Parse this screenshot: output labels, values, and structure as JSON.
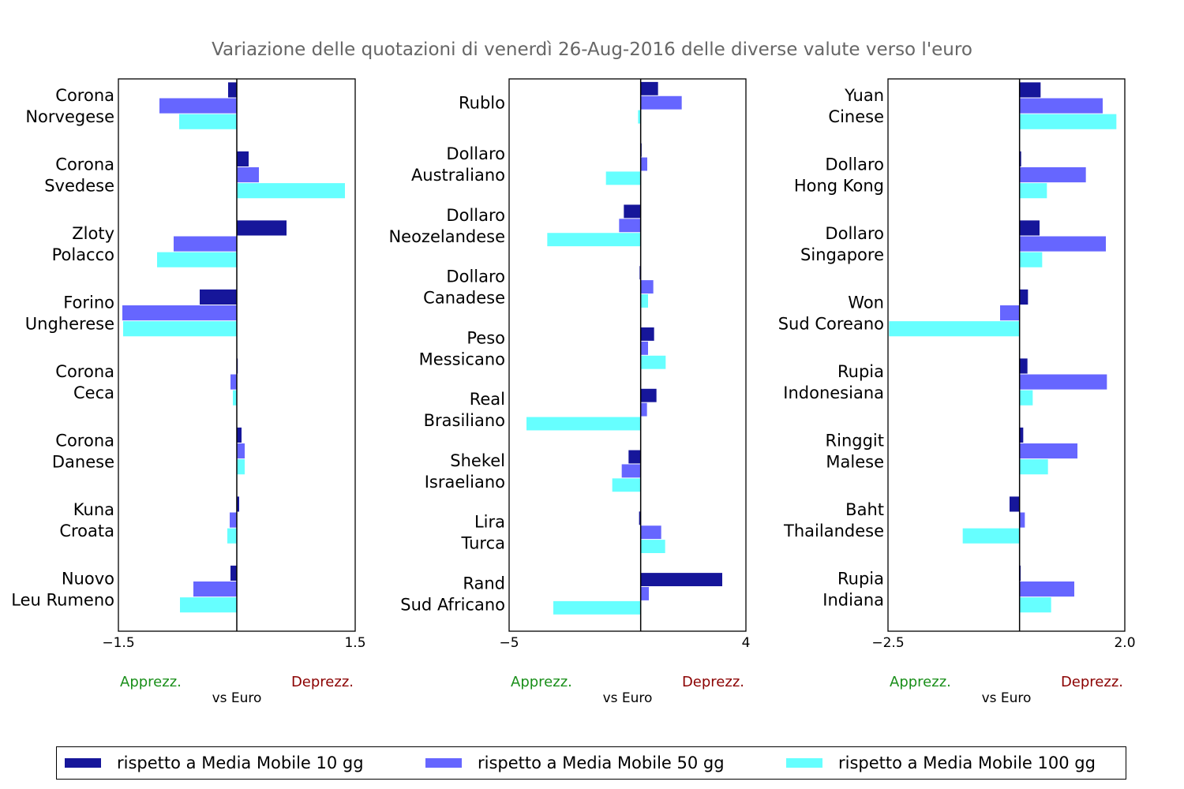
{
  "title": "Variazione delle quotazioni di venerdì 26-Aug-2016 delle diverse valute verso l'euro",
  "colors": {
    "s10": "#16169a",
    "s50": "#6666ff",
    "s100": "#66ffff",
    "apprezz": "#1a8f1a",
    "deprezz": "#8b0000",
    "title": "#666666"
  },
  "legend": [
    {
      "label": "rispetto a Media Mobile 10 gg",
      "color": "#16169a"
    },
    {
      "label": "rispetto a Media Mobile 50 gg",
      "color": "#6666ff"
    },
    {
      "label": "rispetto a Media Mobile 100 gg",
      "color": "#66ffff"
    }
  ],
  "chart_data": [
    {
      "type": "bar",
      "orientation": "horizontal",
      "xlim": [
        -1.5,
        1.5
      ],
      "xticks": [
        "−1.5",
        "1.5"
      ],
      "xlabel": "vs Euro",
      "left_note": "Apprezz.",
      "right_note": "Deprezz.",
      "categories": [
        [
          "Corona",
          "Norvegese"
        ],
        [
          "Corona",
          "Svedese"
        ],
        [
          "Zloty",
          "Polacco"
        ],
        [
          "Forino",
          "Ungherese"
        ],
        [
          "Corona",
          "Ceca"
        ],
        [
          "Corona",
          "Danese"
        ],
        [
          "Kuna",
          "Croata"
        ],
        [
          "Nuovo",
          "Leu Rumeno"
        ]
      ],
      "series": [
        {
          "name": "rispetto a Media Mobile 10 gg",
          "values": [
            -0.11,
            0.15,
            0.63,
            -0.47,
            0.0,
            0.06,
            0.03,
            -0.08
          ]
        },
        {
          "name": "rispetto a Media Mobile 50 gg",
          "values": [
            -0.98,
            0.28,
            -0.8,
            -1.45,
            -0.08,
            0.1,
            -0.09,
            -0.55
          ]
        },
        {
          "name": "rispetto a Media Mobile 100 gg",
          "values": [
            -0.73,
            1.37,
            -1.01,
            -1.44,
            -0.05,
            0.1,
            -0.12,
            -0.72
          ]
        }
      ]
    },
    {
      "type": "bar",
      "orientation": "horizontal",
      "xlim": [
        -5,
        4
      ],
      "xticks": [
        "−5",
        "4"
      ],
      "xlabel": "vs Euro",
      "left_note": "Apprezz.",
      "right_note": "Deprezz.",
      "categories": [
        [
          "Rublo"
        ],
        [
          "Dollaro",
          "Australiano"
        ],
        [
          "Dollaro",
          "Neozelandese"
        ],
        [
          "Dollaro",
          "Canadese"
        ],
        [
          "Peso",
          "Messicano"
        ],
        [
          "Real",
          "Brasiliano"
        ],
        [
          "Shekel",
          "Israeliano"
        ],
        [
          "Lira",
          "Turca"
        ],
        [
          "Rand",
          "Sud Africano"
        ]
      ],
      "series": [
        {
          "name": "rispetto a Media Mobile 10 gg",
          "values": [
            0.66,
            0.0,
            -0.64,
            -0.04,
            0.51,
            0.6,
            -0.46,
            -0.06,
            3.1
          ]
        },
        {
          "name": "rispetto a Media Mobile 50 gg",
          "values": [
            1.56,
            0.25,
            -0.82,
            0.48,
            0.28,
            0.24,
            -0.72,
            0.78,
            0.31
          ]
        },
        {
          "name": "rispetto a Media Mobile 100 gg",
          "values": [
            -0.1,
            -1.32,
            -3.55,
            0.28,
            0.95,
            -4.34,
            -1.08,
            0.93,
            -3.32
          ]
        }
      ]
    },
    {
      "type": "bar",
      "orientation": "horizontal",
      "xlim": [
        -2.5,
        2.0
      ],
      "xticks": [
        "−2.5",
        "2.0"
      ],
      "xlabel": "vs Euro",
      "left_note": "Apprezz.",
      "right_note": "Deprezz.",
      "categories": [
        [
          "Yuan",
          "Cinese"
        ],
        [
          "Dollaro",
          "Hong Kong"
        ],
        [
          "Dollaro",
          "Singapore"
        ],
        [
          "Won",
          "Sud Coreano"
        ],
        [
          "Rupia",
          "Indonesiana"
        ],
        [
          "Ringgit",
          "Malese"
        ],
        [
          "Baht",
          "Thailandese"
        ],
        [
          "Rupia",
          "Indiana"
        ]
      ],
      "series": [
        {
          "name": "rispetto a Media Mobile 10 gg",
          "values": [
            0.4,
            0.03,
            0.38,
            0.16,
            0.15,
            0.07,
            -0.19,
            0.02
          ]
        },
        {
          "name": "rispetto a Media Mobile 50 gg",
          "values": [
            1.58,
            1.26,
            1.64,
            -0.37,
            1.66,
            1.1,
            0.1,
            1.04
          ]
        },
        {
          "name": "rispetto a Media Mobile 100 gg",
          "values": [
            1.84,
            0.52,
            0.43,
            -2.48,
            0.25,
            0.54,
            -1.08,
            0.6
          ]
        }
      ]
    }
  ]
}
